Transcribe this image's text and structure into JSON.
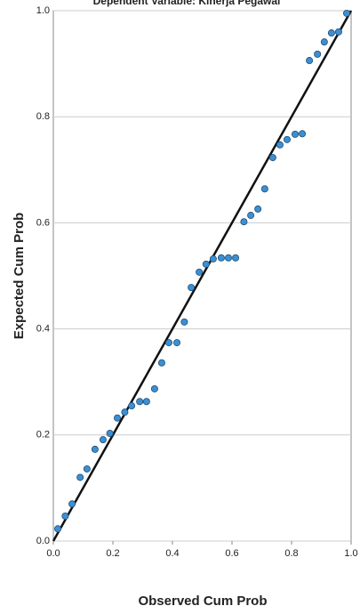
{
  "chart_data": {
    "type": "scatter",
    "title": "Dependent Variable: Kinerja Pegawai",
    "x_label": "Observed Cum Prob",
    "y_label": "Expected Cum Prob",
    "x": [
      0.015,
      0.04,
      0.063,
      0.09,
      0.113,
      0.14,
      0.167,
      0.19,
      0.215,
      0.24,
      0.263,
      0.29,
      0.313,
      0.34,
      0.364,
      0.388,
      0.415,
      0.44,
      0.463,
      0.49,
      0.513,
      0.537,
      0.564,
      0.588,
      0.612,
      0.64,
      0.663,
      0.687,
      0.71,
      0.737,
      0.761,
      0.785,
      0.812,
      0.836,
      0.86,
      0.887,
      0.91,
      0.934,
      0.958,
      0.985
    ],
    "values": [
      0.023,
      0.047,
      0.07,
      0.12,
      0.136,
      0.173,
      0.191,
      0.203,
      0.232,
      0.243,
      0.255,
      0.263,
      0.263,
      0.287,
      0.336,
      0.374,
      0.374,
      0.413,
      0.478,
      0.507,
      0.522,
      0.532,
      0.534,
      0.534,
      0.534,
      0.602,
      0.614,
      0.626,
      0.664,
      0.723,
      0.747,
      0.757,
      0.767,
      0.768,
      0.906,
      0.918,
      0.941,
      0.958,
      0.96,
      0.995
    ],
    "color": "#3d8fd1",
    "line_color": "#111111",
    "xlim": [
      0,
      1
    ],
    "ylim": [
      0,
      1
    ],
    "xticks": [
      {
        "value": 0,
        "label": "0.0"
      },
      {
        "value": 0.2,
        "label": "0.2"
      },
      {
        "value": 0.4,
        "label": "0.4"
      },
      {
        "value": 0.6,
        "label": "0.6"
      },
      {
        "value": 0.8,
        "label": "0.8"
      },
      {
        "value": 1,
        "label": "1.0"
      }
    ],
    "yticks": [
      {
        "value": 0,
        "label": "0.0"
      },
      {
        "value": 0.2,
        "label": "0.2"
      },
      {
        "value": 0.4,
        "label": "0.4"
      },
      {
        "value": 0.6,
        "label": "0.6"
      },
      {
        "value": 0.8,
        "label": "0.8"
      },
      {
        "value": 1,
        "label": "1.0"
      }
    ],
    "grid": true
  }
}
